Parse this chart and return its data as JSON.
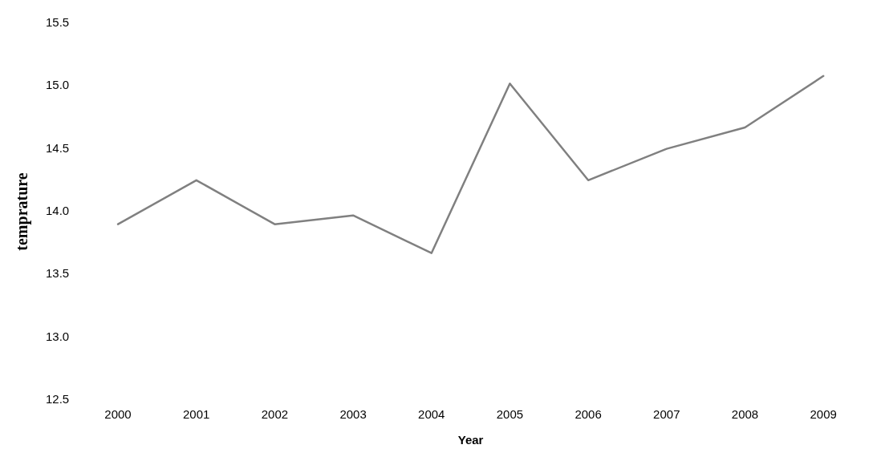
{
  "chart_data": {
    "type": "line",
    "xlabel": "Year",
    "ylabel": "temprature",
    "categories": [
      "2000",
      "2001",
      "2002",
      "2003",
      "2004",
      "2005",
      "2006",
      "2007",
      "2008",
      "2009"
    ],
    "series": [
      {
        "color": "#808080",
        "values": [
          13.9,
          14.25,
          13.9,
          13.97,
          13.67,
          15.02,
          14.25,
          14.5,
          14.67,
          15.08
        ]
      }
    ],
    "ylim": [
      12.5,
      15.5
    ],
    "yticks": [
      12.5,
      {
        "value": 13,
        "label": "13.0"
      },
      13.5,
      {
        "value": 14,
        "label": "14.0"
      },
      14.5,
      {
        "value": 15,
        "label": "15.0"
      },
      15.5
    ],
    "grid": false,
    "legend": false,
    "marker": "none",
    "line_style": "solid"
  }
}
